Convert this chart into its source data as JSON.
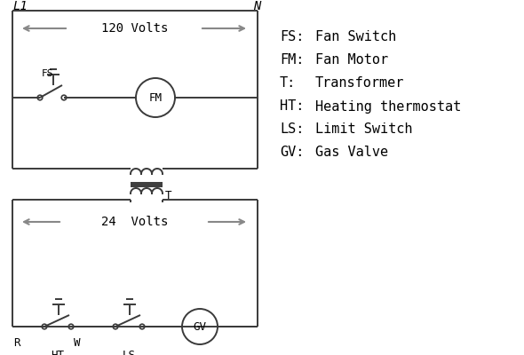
{
  "background_color": "#ffffff",
  "line_color": "#3a3a3a",
  "arrow_color": "#888888",
  "text_color": "#000000",
  "legend": [
    [
      "FS:",
      "Fan Switch"
    ],
    [
      "FM:",
      "Fan Motor"
    ],
    [
      "T:",
      "Transformer"
    ],
    [
      "HT:",
      "Heating thermostat"
    ],
    [
      "LS:",
      "Limit Switch"
    ],
    [
      "GV:",
      "Gas Valve"
    ]
  ],
  "voltage_120": "120 Volts",
  "voltage_24": "24  Volts",
  "label_L1": "L1",
  "label_N": "N",
  "label_T": "T",
  "label_FS": "FS",
  "label_FM": "FM",
  "label_R": "R",
  "label_W": "W",
  "label_HT": "HT",
  "label_LS": "LS",
  "label_GV": "GV"
}
